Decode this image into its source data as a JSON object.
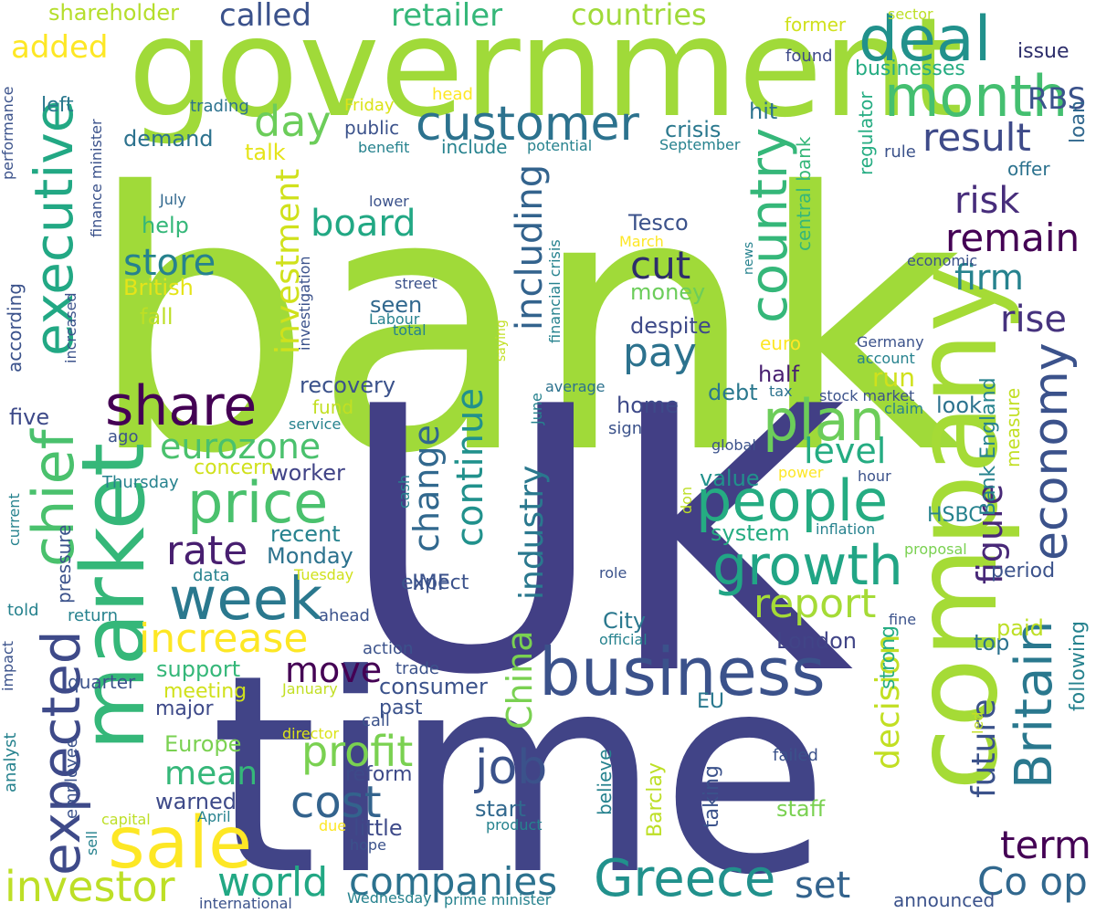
{
  "word_cloud": {
    "words": [
      {
        "text": "bank",
        "color": "#a0da39"
      },
      {
        "text": "UK",
        "color": "#423f85"
      },
      {
        "text": "time",
        "color": "#414487"
      },
      {
        "text": "government",
        "color": "#a0da39"
      },
      {
        "text": "company",
        "color": "#a5db36"
      },
      {
        "text": "market",
        "color": "#35b779"
      },
      {
        "text": "customer",
        "color": "#2c728e"
      },
      {
        "text": "business",
        "color": "#3b528b"
      },
      {
        "text": "month",
        "color": "#44bf70"
      },
      {
        "text": "deal",
        "color": "#21918c"
      },
      {
        "text": "people",
        "color": "#25ac82"
      },
      {
        "text": "growth",
        "color": "#21a585"
      },
      {
        "text": "share",
        "color": "#440154"
      },
      {
        "text": "week",
        "color": "#2a788e"
      },
      {
        "text": "price",
        "color": "#4ac16d"
      },
      {
        "text": "executive",
        "color": "#22a884"
      },
      {
        "text": "chief",
        "color": "#4ac16d"
      },
      {
        "text": "expected",
        "color": "#3e4a89"
      },
      {
        "text": "sale",
        "color": "#fde725"
      },
      {
        "text": "economy",
        "color": "#3b528b"
      },
      {
        "text": "Britain",
        "color": "#2a788e"
      },
      {
        "text": "Greece",
        "color": "#21918c"
      },
      {
        "text": "plan",
        "color": "#6ccd5a"
      },
      {
        "text": "country",
        "color": "#35b779"
      },
      {
        "text": "investor",
        "color": "#bddf26"
      },
      {
        "text": "companies",
        "color": "#2c728e"
      },
      {
        "text": "profit",
        "color": "#7ad151"
      },
      {
        "text": "cost",
        "color": "#33638d"
      },
      {
        "text": "job",
        "color": "#3b528b"
      },
      {
        "text": "increase",
        "color": "#fde725"
      },
      {
        "text": "report",
        "color": "#a5db36"
      },
      {
        "text": "day",
        "color": "#6ccd5a"
      },
      {
        "text": "result",
        "color": "#3e4a89"
      },
      {
        "text": "rate",
        "color": "#481f70"
      },
      {
        "text": "risk",
        "color": "#472d7b"
      },
      {
        "text": "remain",
        "color": "#440154"
      },
      {
        "text": "world",
        "color": "#22a884"
      },
      {
        "text": "rise",
        "color": "#46337e"
      },
      {
        "text": "pay",
        "color": "#2c728e"
      },
      {
        "text": "cut",
        "color": "#2d2e6b"
      },
      {
        "text": "board",
        "color": "#22a884"
      },
      {
        "text": "eurozone",
        "color": "#4ac16d"
      },
      {
        "text": "store",
        "color": "#26828e"
      },
      {
        "text": "including",
        "color": "#33638d"
      },
      {
        "text": "continue",
        "color": "#21918c"
      },
      {
        "text": "change",
        "color": "#31688e"
      },
      {
        "text": "industry",
        "color": "#2a788e"
      },
      {
        "text": "move",
        "color": "#440154"
      },
      {
        "text": "mean",
        "color": "#35b779"
      },
      {
        "text": "figure",
        "color": "#482878"
      },
      {
        "text": "future",
        "color": "#3b528b"
      },
      {
        "text": "decision",
        "color": "#c2df23"
      },
      {
        "text": "term",
        "color": "#440154"
      },
      {
        "text": "Co op",
        "color": "#31688e"
      },
      {
        "text": "set",
        "color": "#33638d"
      },
      {
        "text": "firm",
        "color": "#26828e"
      },
      {
        "text": "investment",
        "color": "#d0e11c"
      },
      {
        "text": "level",
        "color": "#25ac82"
      },
      {
        "text": "China",
        "color": "#7ad151"
      },
      {
        "text": "RBS",
        "color": "#3b528b"
      },
      {
        "text": "added",
        "color": "#fde725"
      },
      {
        "text": "called",
        "color": "#3b528b"
      },
      {
        "text": "retailer",
        "color": "#35b779"
      },
      {
        "text": "countries",
        "color": "#a0da39"
      },
      {
        "text": "Tesco",
        "color": "#3b528b"
      },
      {
        "text": "crisis",
        "color": "#2a788e"
      },
      {
        "text": "hit",
        "color": "#2c728e"
      },
      {
        "text": "run",
        "color": "#d0e11c"
      },
      {
        "text": "half",
        "color": "#481f70"
      },
      {
        "text": "despite",
        "color": "#3e4a89"
      },
      {
        "text": "demand",
        "color": "#2c728e"
      },
      {
        "text": "talk",
        "color": "#e5e419"
      },
      {
        "text": "help",
        "color": "#35b779"
      },
      {
        "text": "British",
        "color": "#e5e419"
      },
      {
        "text": "fall",
        "color": "#bddf26"
      },
      {
        "text": "seen",
        "color": "#31688e"
      },
      {
        "text": "money",
        "color": "#6ccd5a"
      },
      {
        "text": "recovery",
        "color": "#3b528b"
      },
      {
        "text": "home",
        "color": "#3e4a89"
      },
      {
        "text": "debt",
        "color": "#2a788e"
      },
      {
        "text": "look",
        "color": "#2c728e"
      },
      {
        "text": "five",
        "color": "#3e4a89"
      },
      {
        "text": "fund",
        "color": "#c2df23"
      },
      {
        "text": "worker",
        "color": "#414487"
      },
      {
        "text": "concern",
        "color": "#d0e11c"
      },
      {
        "text": "recent",
        "color": "#26828e"
      },
      {
        "text": "Monday",
        "color": "#2c728e"
      },
      {
        "text": "IMF",
        "color": "#3b528b"
      },
      {
        "text": "expect",
        "color": "#3b528b"
      },
      {
        "text": "City",
        "color": "#2a788e"
      },
      {
        "text": "value",
        "color": "#21918c"
      },
      {
        "text": "system",
        "color": "#25ac82"
      },
      {
        "text": "London",
        "color": "#414487"
      },
      {
        "text": "top",
        "color": "#2c728e"
      },
      {
        "text": "paid",
        "color": "#bddf26"
      },
      {
        "text": "period",
        "color": "#3b528b"
      },
      {
        "text": "HSBC",
        "color": "#26828e"
      },
      {
        "text": "support",
        "color": "#35b779"
      },
      {
        "text": "quarter",
        "color": "#3b528b"
      },
      {
        "text": "consumer",
        "color": "#3b528b"
      },
      {
        "text": "meeting",
        "color": "#d0e11c"
      },
      {
        "text": "major",
        "color": "#3e4a89"
      },
      {
        "text": "past",
        "color": "#3b528b"
      },
      {
        "text": "EU",
        "color": "#2a788e"
      },
      {
        "text": "Europe",
        "color": "#7ad151"
      },
      {
        "text": "warned",
        "color": "#3e4a89"
      },
      {
        "text": "reform",
        "color": "#3e4a89"
      },
      {
        "text": "start",
        "color": "#31688e"
      },
      {
        "text": "little",
        "color": "#3e4a89"
      },
      {
        "text": "staff",
        "color": "#7ad151"
      },
      {
        "text": "shareholder",
        "color": "#b5de2b"
      },
      {
        "text": "left",
        "color": "#2a788e"
      },
      {
        "text": "trading",
        "color": "#2c728e"
      },
      {
        "text": "public",
        "color": "#3b528b"
      },
      {
        "text": "include",
        "color": "#26828e"
      },
      {
        "text": "benefit",
        "color": "#26828e"
      },
      {
        "text": "potential",
        "color": "#26828e"
      },
      {
        "text": "September",
        "color": "#26828e"
      },
      {
        "text": "issue",
        "color": "#2d2e6b"
      },
      {
        "text": "businesses",
        "color": "#25ac82"
      },
      {
        "text": "former",
        "color": "#d0e11c"
      },
      {
        "text": "found",
        "color": "#3e4a89"
      },
      {
        "text": "sector",
        "color": "#bddf26"
      },
      {
        "text": "head",
        "color": "#fde725"
      },
      {
        "text": "Friday",
        "color": "#dbe318"
      },
      {
        "text": "offer",
        "color": "#2c728e"
      },
      {
        "text": "loan",
        "color": "#31688e"
      },
      {
        "text": "rule",
        "color": "#3b528b"
      },
      {
        "text": "regulator",
        "color": "#25ac82"
      },
      {
        "text": "central bank",
        "color": "#35b779"
      },
      {
        "text": "July",
        "color": "#31688e"
      },
      {
        "text": "lower",
        "color": "#3b528b"
      },
      {
        "text": "March",
        "color": "#fde725"
      },
      {
        "text": "street",
        "color": "#3b528b"
      },
      {
        "text": "Labour",
        "color": "#26828e"
      },
      {
        "text": "total",
        "color": "#26828e"
      },
      {
        "text": "euro",
        "color": "#fde725"
      },
      {
        "text": "news",
        "color": "#26828e"
      },
      {
        "text": "economic",
        "color": "#3b528b"
      },
      {
        "text": "Germany",
        "color": "#3b528b"
      },
      {
        "text": "account",
        "color": "#26828e"
      },
      {
        "text": "average",
        "color": "#2c728e"
      },
      {
        "text": "tax",
        "color": "#2c728e"
      },
      {
        "text": "stock market",
        "color": "#3b528b"
      },
      {
        "text": "claim",
        "color": "#26828e"
      },
      {
        "text": "sign",
        "color": "#3b528b"
      },
      {
        "text": "global",
        "color": "#3b528b"
      },
      {
        "text": "power",
        "color": "#fde725"
      },
      {
        "text": "hour",
        "color": "#3b528b"
      },
      {
        "text": "inflation",
        "color": "#26828e"
      },
      {
        "text": "proposal",
        "color": "#7ad151"
      },
      {
        "text": "role",
        "color": "#3b528b"
      },
      {
        "text": "official",
        "color": "#26828e"
      },
      {
        "text": "fine",
        "color": "#3b528b"
      },
      {
        "text": "ahead",
        "color": "#3b528b"
      },
      {
        "text": "action",
        "color": "#3b528b"
      },
      {
        "text": "trade",
        "color": "#3b528b"
      },
      {
        "text": "January",
        "color": "#c2df23"
      },
      {
        "text": "call",
        "color": "#3b528b"
      },
      {
        "text": "director",
        "color": "#dbe318"
      },
      {
        "text": "failed",
        "color": "#3b528b"
      },
      {
        "text": "led",
        "color": "#c2df23"
      },
      {
        "text": "capital",
        "color": "#bddf26"
      },
      {
        "text": "April",
        "color": "#26828e"
      },
      {
        "text": "due",
        "color": "#fde725"
      },
      {
        "text": "product",
        "color": "#26828e"
      },
      {
        "text": "hope",
        "color": "#3b528b"
      },
      {
        "text": "sell",
        "color": "#26828e"
      },
      {
        "text": "international",
        "color": "#3b528b"
      },
      {
        "text": "Wednesday",
        "color": "#26828e"
      },
      {
        "text": "prime minister",
        "color": "#26828e"
      },
      {
        "text": "announced",
        "color": "#3b528b"
      },
      {
        "text": "told",
        "color": "#26828e"
      },
      {
        "text": "return",
        "color": "#26828e"
      },
      {
        "text": "impact",
        "color": "#3b528b"
      },
      {
        "text": "analyst",
        "color": "#26828e"
      },
      {
        "text": "employee",
        "color": "#3b528b"
      },
      {
        "text": "Thursday",
        "color": "#26828e"
      },
      {
        "text": "ago",
        "color": "#3b528b"
      },
      {
        "text": "service",
        "color": "#26828e"
      },
      {
        "text": "Tuesday",
        "color": "#d0e11c"
      },
      {
        "text": "data",
        "color": "#26828e"
      },
      {
        "text": "pressure",
        "color": "#3b528b"
      },
      {
        "text": "current",
        "color": "#26828e"
      },
      {
        "text": "according",
        "color": "#3b528b"
      },
      {
        "text": "increased",
        "color": "#3b528b"
      },
      {
        "text": "investigation",
        "color": "#3b528b"
      },
      {
        "text": "finance minister",
        "color": "#3b528b"
      },
      {
        "text": "performance",
        "color": "#3b528b"
      },
      {
        "text": "saying",
        "color": "#c2df23"
      },
      {
        "text": "financial crisis",
        "color": "#26828e"
      },
      {
        "text": "June",
        "color": "#26828e"
      },
      {
        "text": "cash",
        "color": "#26828e"
      },
      {
        "text": "don",
        "color": "#bddf26"
      },
      {
        "text": "believe",
        "color": "#26828e"
      },
      {
        "text": "Barclay",
        "color": "#bddf26"
      },
      {
        "text": "taking",
        "color": "#3b528b"
      },
      {
        "text": "strong",
        "color": "#25ac82"
      },
      {
        "text": "Bank England",
        "color": "#26828e"
      },
      {
        "text": "measure",
        "color": "#c2df23"
      },
      {
        "text": "following",
        "color": "#26828e"
      }
    ]
  }
}
